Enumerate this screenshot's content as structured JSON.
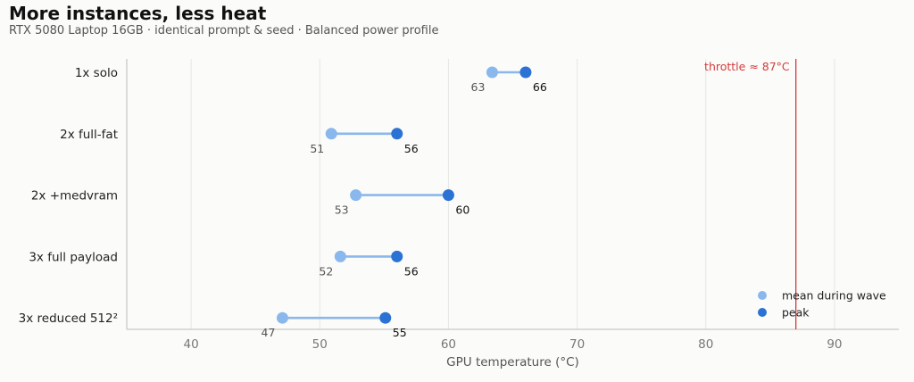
{
  "title": "More instances, less heat",
  "subtitle": "RTX 5080 Laptop 16GB · identical prompt & seed · Balanced power profile",
  "colors": {
    "mean": "#8ab8ec",
    "peak": "#2a72d4",
    "connector": "#8ab8ec",
    "threshold": "#d43c3c",
    "grid": "#e6e6e6",
    "axis": "#bbbbbb"
  },
  "chart_data": {
    "type": "dumbbell",
    "xlabel": "GPU temperature (°C)",
    "xlim": [
      35,
      95
    ],
    "xticks": [
      40,
      50,
      60,
      70,
      80,
      90
    ],
    "grid": "x",
    "categories": [
      "1x solo",
      "2x full-fat",
      "2x +medvram",
      "3x full payload",
      "3x reduced 512²"
    ],
    "series": [
      {
        "name": "mean during wave",
        "values": [
          63.4,
          50.9,
          52.8,
          51.6,
          47.1
        ],
        "labels": [
          "63",
          "51",
          "53",
          "52",
          "47"
        ]
      },
      {
        "name": "peak",
        "values": [
          66,
          56,
          60,
          56,
          55.1
        ],
        "labels": [
          "66",
          "56",
          "60",
          "56",
          "55"
        ]
      }
    ],
    "threshold": {
      "value": 87,
      "label": "throttle ≈ 87°C"
    },
    "legend": "bottom-right"
  }
}
